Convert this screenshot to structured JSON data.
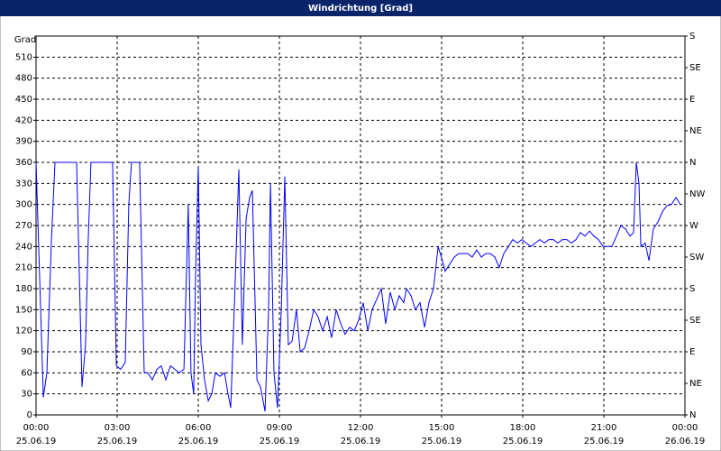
{
  "chart_data": {
    "type": "line",
    "title": "Windrichtung [Grad]",
    "ylabel": "Grad",
    "color": "#0000ff",
    "grid": true,
    "xlim": [
      0,
      24
    ],
    "xticks": [
      {
        "value": 0,
        "label": "00:00"
      },
      {
        "value": 3,
        "label": "03:00"
      },
      {
        "value": 6,
        "label": "06:00"
      },
      {
        "value": 9,
        "label": "09:00"
      },
      {
        "value": 12,
        "label": "12:00"
      },
      {
        "value": 15,
        "label": "15:00"
      },
      {
        "value": 18,
        "label": "18:00"
      },
      {
        "value": 21,
        "label": "21:00"
      },
      {
        "value": 24,
        "label": "00:00"
      }
    ],
    "xtick_dates": [
      "25.06.19",
      "25.06.19",
      "25.06.19",
      "25.06.19",
      "25.06.19",
      "25.06.19",
      "25.06.19",
      "25.06.19",
      "26.06.19"
    ],
    "ylim": [
      0,
      540
    ],
    "yticks": [
      0,
      30,
      60,
      90,
      120,
      150,
      180,
      210,
      240,
      270,
      300,
      330,
      360,
      390,
      420,
      450,
      480,
      510
    ],
    "y2lim": [
      0,
      540
    ],
    "y2ticks": [
      {
        "value": 0,
        "label": "N"
      },
      {
        "value": 45,
        "label": "NE"
      },
      {
        "value": 90,
        "label": "E"
      },
      {
        "value": 135,
        "label": "SE"
      },
      {
        "value": 180,
        "label": "S"
      },
      {
        "value": 225,
        "label": "SW"
      },
      {
        "value": 270,
        "label": "W"
      },
      {
        "value": 315,
        "label": "NW"
      },
      {
        "value": 360,
        "label": "N"
      },
      {
        "value": 405,
        "label": "NE"
      },
      {
        "value": 450,
        "label": "E"
      },
      {
        "value": 495,
        "label": "SE"
      },
      {
        "value": 540,
        "label": "S"
      }
    ],
    "x": [
      0,
      0.13,
      0.27,
      0.4,
      0.57,
      0.7,
      1.5,
      1.6,
      1.7,
      1.83,
      1.93,
      2.03,
      2.83,
      2.97,
      3.13,
      3.3,
      3.43,
      3.53,
      3.83,
      4.0,
      4.13,
      4.3,
      4.47,
      4.63,
      4.8,
      4.97,
      5.13,
      5.3,
      5.47,
      5.63,
      5.73,
      5.83,
      5.9,
      6.0,
      6.1,
      6.23,
      6.37,
      6.5,
      6.63,
      6.8,
      6.97,
      7.1,
      7.2,
      7.33,
      7.5,
      7.63,
      7.77,
      7.9,
      8.0,
      8.17,
      8.3,
      8.47,
      8.6,
      8.67,
      8.8,
      8.93,
      9.07,
      9.2,
      9.33,
      9.47,
      9.63,
      9.77,
      9.93,
      10.1,
      10.27,
      10.43,
      10.6,
      10.77,
      10.93,
      11.1,
      11.27,
      11.43,
      11.6,
      11.77,
      11.93,
      12.1,
      12.27,
      12.43,
      12.6,
      12.77,
      12.93,
      13.1,
      13.27,
      13.43,
      13.6,
      13.7,
      13.87,
      14.03,
      14.2,
      14.37,
      14.53,
      14.7,
      14.87,
      15.03,
      15.13,
      15.3,
      15.47,
      15.63,
      15.8,
      15.97,
      16.13,
      16.3,
      16.47,
      16.63,
      16.8,
      16.97,
      17.13,
      17.3,
      17.47,
      17.63,
      17.8,
      17.97,
      18.13,
      18.3,
      18.47,
      18.63,
      18.8,
      18.97,
      19.13,
      19.3,
      19.47,
      19.63,
      19.8,
      19.97,
      20.13,
      20.3,
      20.47,
      20.63,
      20.8,
      20.97,
      21.13,
      21.3,
      21.47,
      21.63,
      21.8,
      21.97,
      22.1,
      22.2,
      22.3,
      22.37,
      22.53,
      22.67,
      22.83,
      23.0,
      23.17,
      23.33,
      23.5,
      23.67,
      23.83
    ],
    "values": [
      360,
      200,
      25,
      60,
      250,
      360,
      360,
      200,
      40,
      100,
      250,
      360,
      360,
      70,
      65,
      75,
      300,
      360,
      360,
      60,
      60,
      50,
      65,
      70,
      50,
      70,
      65,
      60,
      65,
      300,
      60,
      30,
      200,
      355,
      100,
      50,
      20,
      30,
      60,
      55,
      60,
      30,
      10,
      150,
      350,
      100,
      280,
      310,
      320,
      50,
      40,
      5,
      150,
      330,
      60,
      10,
      150,
      340,
      100,
      105,
      150,
      90,
      95,
      120,
      150,
      140,
      120,
      140,
      110,
      150,
      130,
      115,
      125,
      120,
      135,
      160,
      120,
      150,
      165,
      180,
      130,
      175,
      150,
      170,
      160,
      180,
      170,
      150,
      160,
      125,
      160,
      180,
      240,
      220,
      205,
      215,
      225,
      230,
      230,
      230,
      225,
      235,
      225,
      230,
      230,
      225,
      210,
      230,
      240,
      250,
      245,
      250,
      245,
      240,
      245,
      250,
      245,
      250,
      250,
      245,
      250,
      250,
      245,
      250,
      260,
      255,
      262,
      255,
      250,
      240,
      240,
      240,
      255,
      270,
      265,
      255,
      260,
      360,
      330,
      240,
      245,
      220,
      265,
      275,
      290,
      298,
      300,
      310,
      300
    ]
  }
}
